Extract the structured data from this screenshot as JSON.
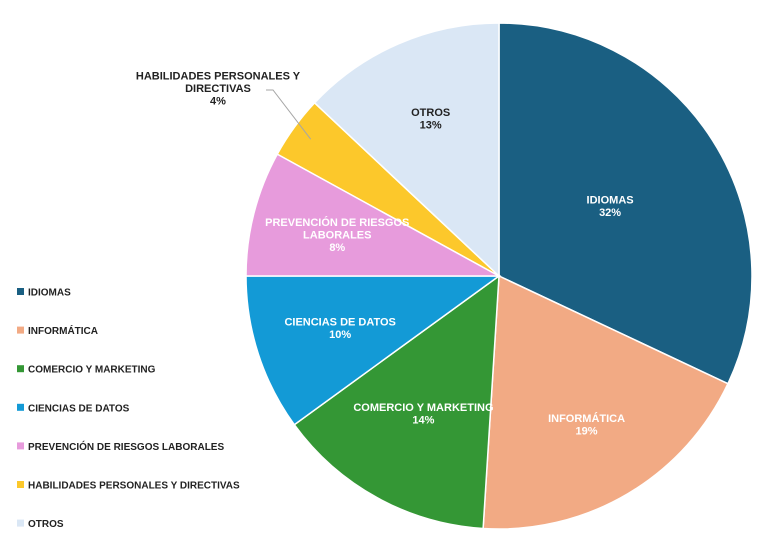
{
  "chart_data": {
    "type": "pie",
    "title": "",
    "legend_position": "left",
    "slices": [
      {
        "name": "IDIOMAS",
        "label_lines": [
          "IDIOMAS"
        ],
        "value": 32,
        "value_label": "32%",
        "color": "#1a5f82",
        "label_color": "#ffffff"
      },
      {
        "name": "INFORMÁTICA",
        "label_lines": [
          "INFORMÁTICA"
        ],
        "value": 19,
        "value_label": "19%",
        "color": "#f2aa84",
        "label_color": "#ffffff"
      },
      {
        "name": "COMERCIO Y MARKETING",
        "label_lines": [
          "COMERCIO Y MARKETING"
        ],
        "value": 14,
        "value_label": "14%",
        "color": "#349735",
        "label_color": "#ffffff"
      },
      {
        "name": "CIENCIAS DE DATOS",
        "label_lines": [
          "CIENCIAS DE DATOS"
        ],
        "value": 10,
        "value_label": "10%",
        "color": "#139ad6",
        "label_color": "#ffffff"
      },
      {
        "name": "PREVENCIÓN DE RIESGOS LABORALES",
        "label_lines": [
          "PREVENCIÓN DE RIESGOS",
          "LABORALES"
        ],
        "value": 8,
        "value_label": "8%",
        "color": "#e79bdc",
        "label_color": "#ffffff"
      },
      {
        "name": "HABILIDADES PERSONALES Y DIRECTIVAS",
        "label_lines": [
          "HABILIDADES PERSONALES Y",
          "DIRECTIVAS"
        ],
        "value": 4,
        "value_label": "4%",
        "color": "#fcc82b",
        "label_color": "#222222"
      },
      {
        "name": "OTROS",
        "label_lines": [
          "OTROS"
        ],
        "value": 13,
        "value_label": "13%",
        "color": "#dae7f5",
        "label_color": "#222222"
      }
    ]
  }
}
